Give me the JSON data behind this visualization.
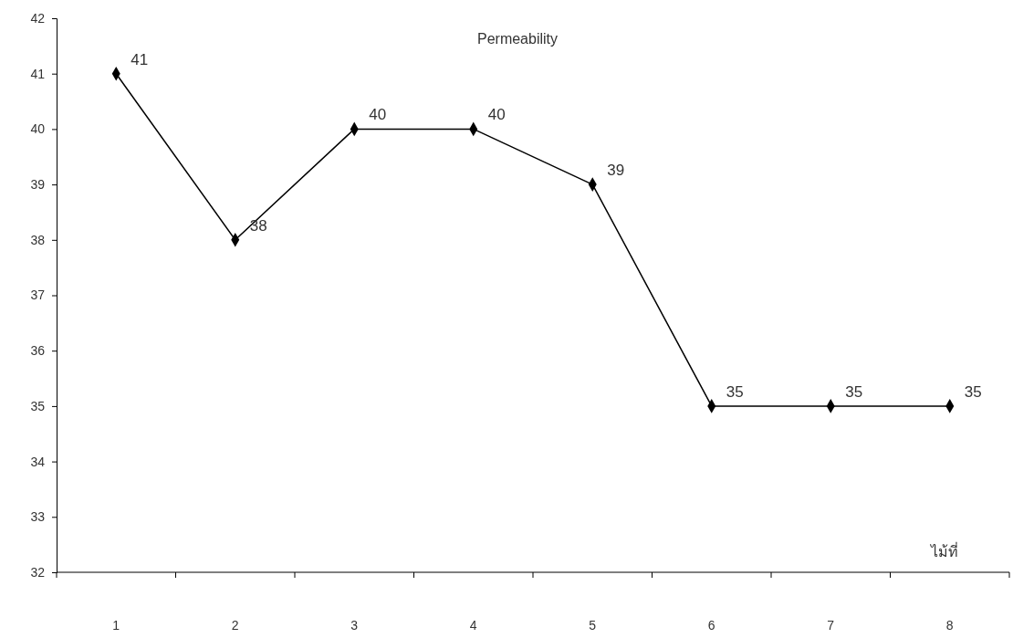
{
  "chart_data": {
    "type": "line",
    "title": "Permeability",
    "xlabel": "ไม้ที่",
    "categories": [
      "1",
      "2",
      "3",
      "4",
      "5",
      "6",
      "7",
      "8"
    ],
    "series": [
      {
        "color": "#000000",
        "values": [
          41,
          38,
          40,
          40,
          39,
          35,
          35,
          35
        ]
      }
    ],
    "ylim": [
      32,
      42
    ],
    "yticks": [
      32,
      33,
      34,
      35,
      36,
      37,
      38,
      39,
      40,
      41,
      42
    ],
    "grid": false,
    "marker": "diamond",
    "line_style": "solid",
    "data_labels": true
  }
}
